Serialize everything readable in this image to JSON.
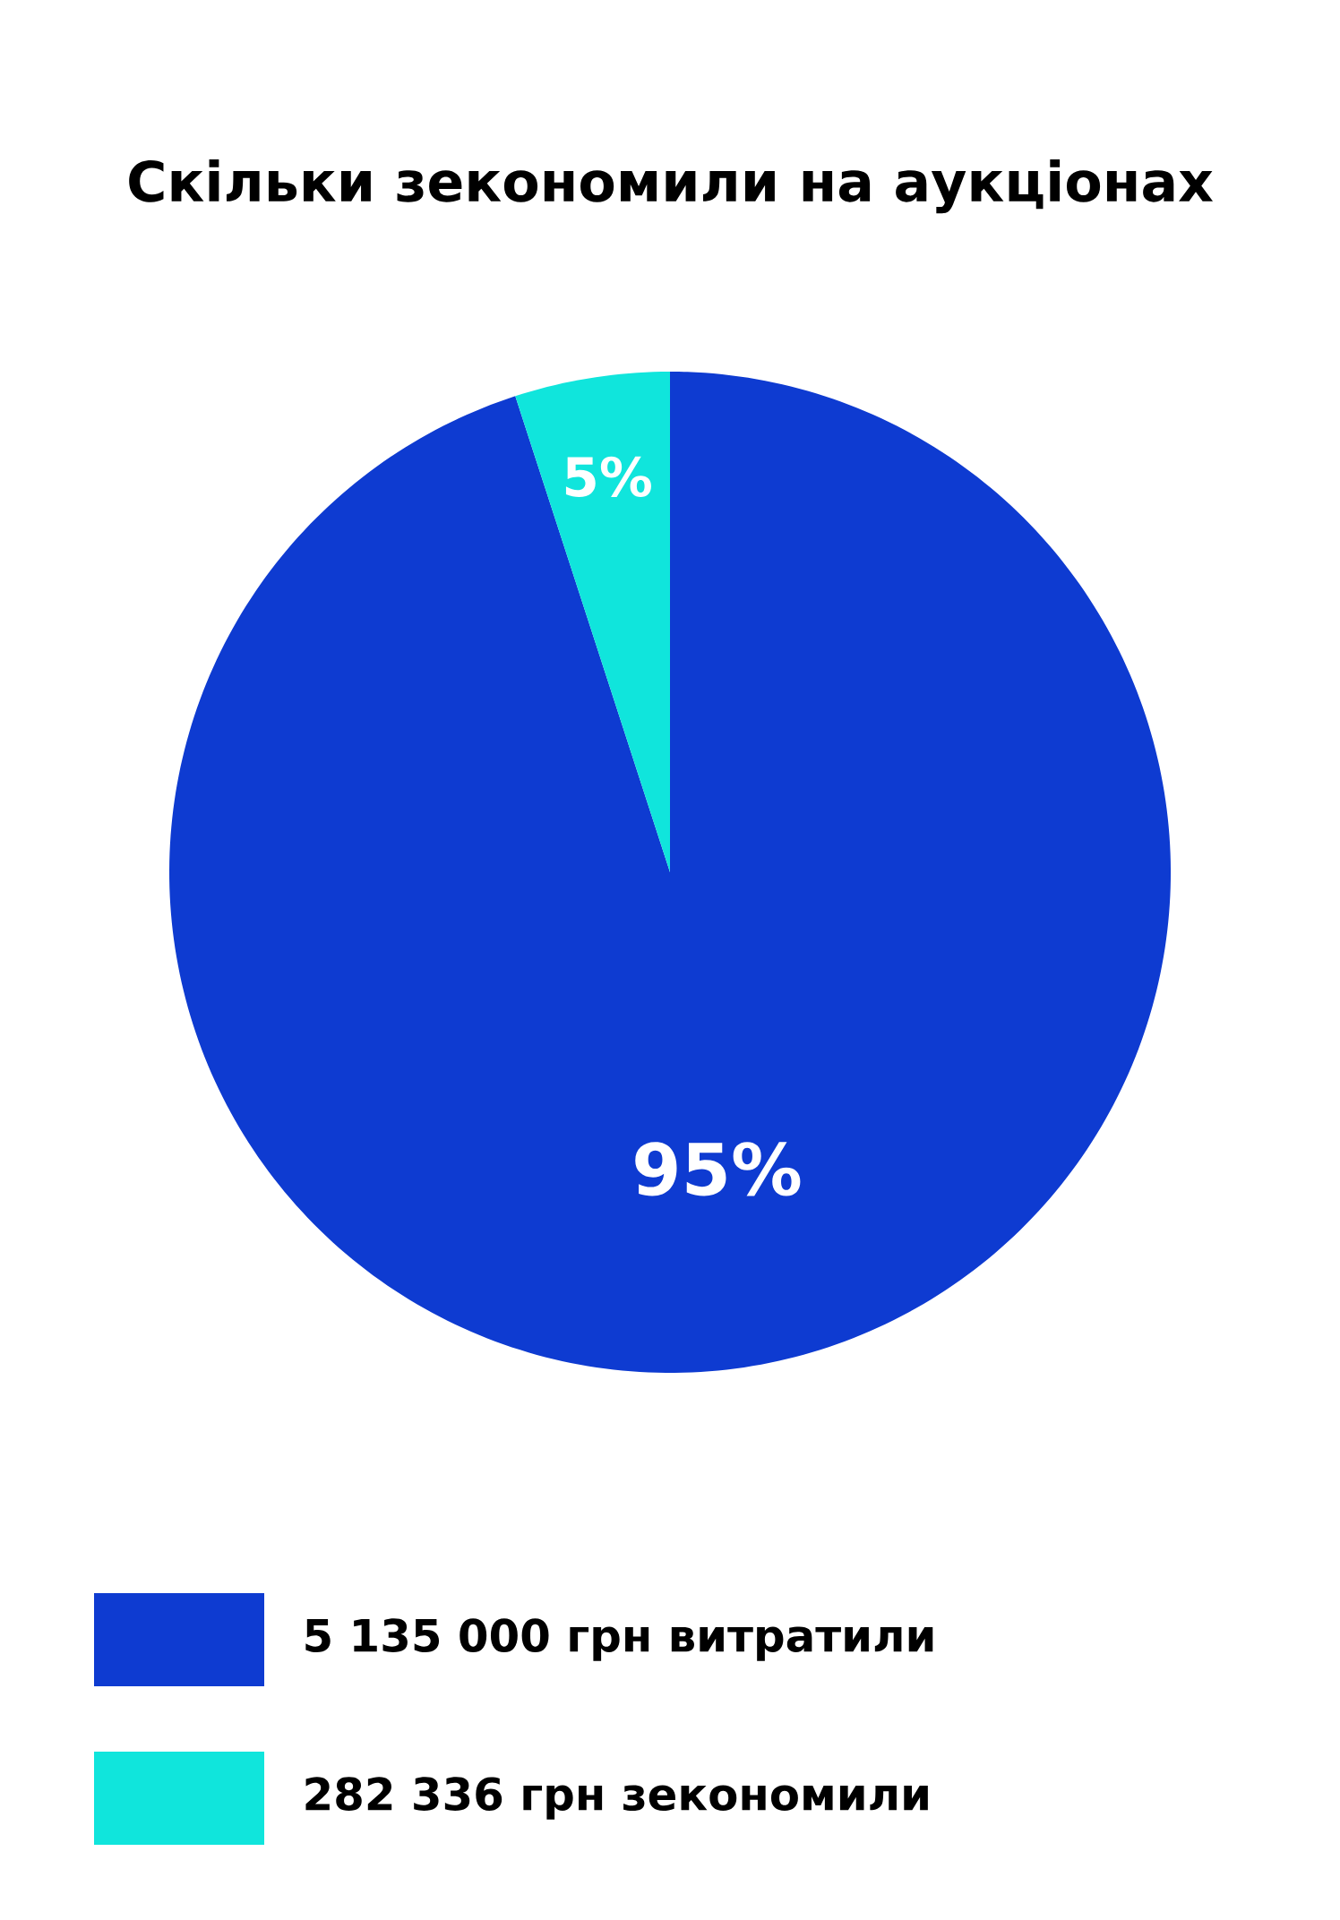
{
  "chart_data": {
    "type": "pie",
    "title": "Скільки зекономили на аукціонах",
    "categories": [
      "5 135 000 грн витратили",
      "282 336 грн зекономили"
    ],
    "values": [
      95,
      5
    ],
    "value_labels": [
      "95%",
      "5%"
    ],
    "colors": [
      "#0e3bd1",
      "#10e5dc"
    ],
    "legend": "bottom"
  }
}
